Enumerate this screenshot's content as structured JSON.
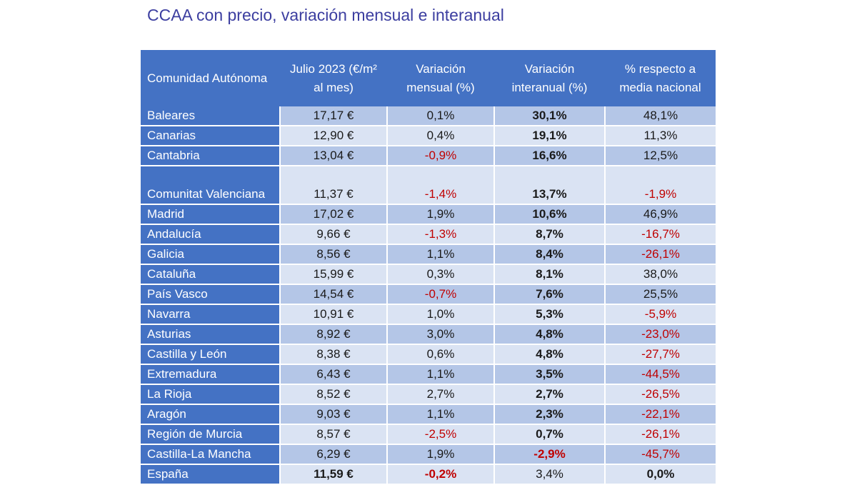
{
  "title": "CCAA con precio, variación mensual e interanual",
  "headers": [
    "Comunidad Autónoma",
    "Julio 2023 (€/m² al mes)",
    "Variación mensual (%)",
    "Variación interanual (%)",
    "% respecto a media nacional"
  ],
  "colors": {
    "header": "#4472c4",
    "band_dark": "#b4c6e7",
    "band_light": "#dae3f3",
    "negative": "#c00000",
    "title": "#3c3ea0"
  },
  "rows": [
    {
      "region": "Baleares",
      "price": "17,17 €",
      "monthly": "0,1%",
      "annual": "30,1%",
      "national": "48,1%"
    },
    {
      "region": "Canarias",
      "price": "12,90 €",
      "monthly": "0,4%",
      "annual": "19,1%",
      "national": "11,3%"
    },
    {
      "region": "Cantabria",
      "price": "13,04 €",
      "monthly": "-0,9%",
      "annual": "16,6%",
      "national": "12,5%"
    },
    {
      "region": "Comunitat Valenciana",
      "price": "11,37 €",
      "monthly": "-1,4%",
      "annual": "13,7%",
      "national": "-1,9%"
    },
    {
      "region": "Madrid",
      "price": "17,02 €",
      "monthly": "1,9%",
      "annual": "10,6%",
      "national": "46,9%"
    },
    {
      "region": "Andalucía",
      "price": "9,66 €",
      "monthly": "-1,3%",
      "annual": "8,7%",
      "national": "-16,7%"
    },
    {
      "region": "Galicia",
      "price": "8,56 €",
      "monthly": "1,1%",
      "annual": "8,4%",
      "national": "-26,1%"
    },
    {
      "region": "Cataluña",
      "price": "15,99 €",
      "monthly": "0,3%",
      "annual": "8,1%",
      "national": "38,0%"
    },
    {
      "region": "País Vasco",
      "price": "14,54 €",
      "monthly": "-0,7%",
      "annual": "7,6%",
      "national": "25,5%"
    },
    {
      "region": "Navarra",
      "price": "10,91 €",
      "monthly": "1,0%",
      "annual": "5,3%",
      "national": "-5,9%"
    },
    {
      "region": "Asturias",
      "price": "8,92 €",
      "monthly": "3,0%",
      "annual": "4,8%",
      "national": "-23,0%"
    },
    {
      "region": "Castilla y León",
      "price": "8,38 €",
      "monthly": "0,6%",
      "annual": "4,8%",
      "national": "-27,7%"
    },
    {
      "region": "Extremadura",
      "price": "6,43 €",
      "monthly": "1,1%",
      "annual": "3,5%",
      "national": "-44,5%"
    },
    {
      "region": "La Rioja",
      "price": "8,52 €",
      "monthly": "2,7%",
      "annual": "2,7%",
      "national": "-26,5%"
    },
    {
      "region": "Aragón",
      "price": "9,03 €",
      "monthly": "1,1%",
      "annual": "2,3%",
      "national": "-22,1%"
    },
    {
      "region": "Región de Murcia",
      "price": "8,57 €",
      "monthly": "-2,5%",
      "annual": "0,7%",
      "national": "-26,1%"
    },
    {
      "region": "Castilla-La Mancha",
      "price": "6,29 €",
      "monthly": "1,9%",
      "annual": "-2,9%",
      "national": "-45,7%"
    },
    {
      "region": "España",
      "price": "11,59 €",
      "monthly": "-0,2%",
      "annual": "3,4%",
      "national": "0,0%"
    }
  ]
}
